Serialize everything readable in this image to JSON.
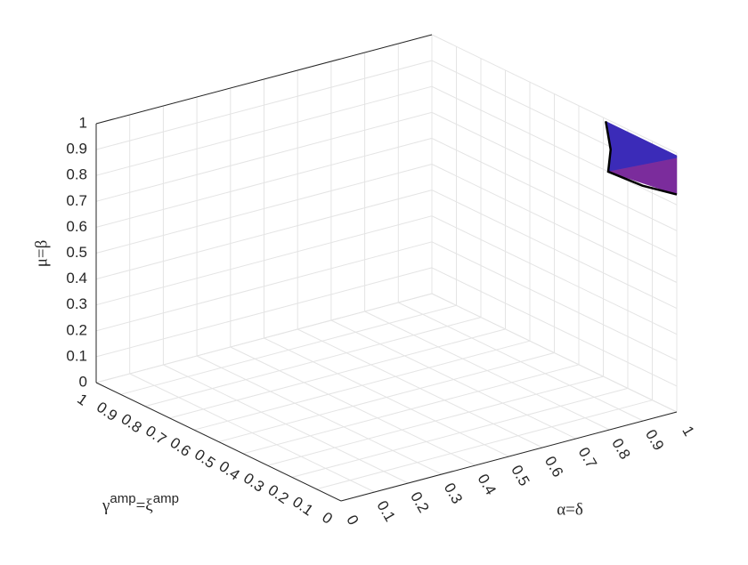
{
  "chart_data": {
    "type": "surface3d",
    "xlabel": "α=δ",
    "ylabel": [
      {
        "text": "γ"
      },
      {
        "text": "amp",
        "sup": true
      },
      {
        "text": "=ξ"
      },
      {
        "text": "amp",
        "sup": true
      }
    ],
    "zlabel": "μ=β",
    "xlim": [
      0,
      1
    ],
    "ylim": [
      0,
      1
    ],
    "zlim": [
      0,
      1
    ],
    "xticks": [
      0,
      0.1,
      0.2,
      0.3,
      0.4,
      0.5,
      0.6,
      0.7,
      0.8,
      0.9,
      1
    ],
    "yticks": [
      0,
      0.1,
      0.2,
      0.3,
      0.4,
      0.5,
      0.6,
      0.7,
      0.8,
      0.9,
      1
    ],
    "zticks": [
      0,
      0.1,
      0.2,
      0.3,
      0.4,
      0.5,
      0.6,
      0.7,
      0.8,
      0.9,
      1
    ],
    "grid": true,
    "surface": [
      {
        "color": "#3b2bb8",
        "vertices": [
          [
            1,
            0.29,
            0.99
          ],
          [
            1,
            0,
            0.99
          ],
          [
            1,
            0,
            0.98
          ],
          [
            1,
            0.28,
            0.8
          ],
          [
            1,
            0.27,
            0.89
          ]
        ]
      },
      {
        "color": "#7b2c9c",
        "vertices": [
          [
            1,
            0.28,
            0.8
          ],
          [
            1,
            0,
            0.98
          ],
          [
            1,
            0,
            0.84
          ]
        ]
      }
    ],
    "boundary": [
      [
        1,
        0.29,
        0.99
      ],
      [
        1,
        0.27,
        0.89
      ],
      [
        1,
        0.28,
        0.8
      ],
      [
        1,
        0.14,
        0.81
      ],
      [
        1,
        0,
        0.84
      ]
    ],
    "boundary_color": "#000000"
  }
}
